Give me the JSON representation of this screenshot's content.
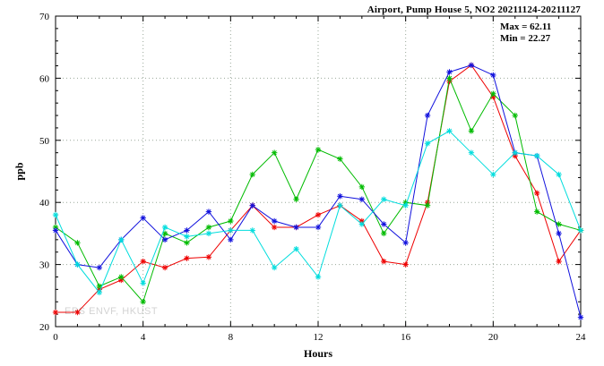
{
  "title": "Airport, Pump House 5, NO2 20211124-20211127",
  "stats": {
    "max_label": "Max = 62.11",
    "min_label": "Min = 22.27"
  },
  "watermark": "EPS ENVF, HKUST",
  "chart_data": {
    "type": "line",
    "title": "Airport, Pump House 5, NO2 20211124-20211127",
    "xlabel": "Hours",
    "ylabel": "ppb",
    "xlim": [
      0,
      24
    ],
    "ylim": [
      20,
      70
    ],
    "xticks": [
      0,
      4,
      8,
      12,
      16,
      20,
      24
    ],
    "yticks": [
      20,
      30,
      40,
      50,
      60,
      70
    ],
    "grid": true,
    "legend": "none",
    "marker": "asterisk",
    "max": 62.11,
    "min": 22.27,
    "x": [
      0,
      1,
      2,
      3,
      4,
      5,
      6,
      7,
      8,
      9,
      10,
      11,
      12,
      13,
      14,
      15,
      16,
      17,
      18,
      19,
      20,
      21,
      22,
      23,
      24
    ],
    "series": [
      {
        "name": "series-1",
        "color": "#ee0000",
        "values": [
          22.3,
          22.3,
          26.0,
          27.5,
          30.5,
          29.5,
          31.0,
          31.2,
          35.5,
          39.5,
          36.0,
          36.0,
          38.0,
          39.5,
          37.0,
          30.5,
          30.0,
          40.0,
          59.5,
          62.1,
          57.0,
          47.5,
          41.5,
          30.5,
          35.5
        ]
      },
      {
        "name": "series-2",
        "color": "#00bb00",
        "values": [
          36.0,
          33.5,
          26.5,
          28.0,
          24.0,
          35.0,
          33.5,
          36.0,
          37.0,
          44.5,
          48.0,
          40.5,
          48.5,
          47.0,
          42.5,
          35.0,
          40.0,
          39.5,
          60.0,
          51.5,
          57.5,
          54.0,
          38.5,
          36.5,
          35.5
        ]
      },
      {
        "name": "series-3",
        "color": "#1111dd",
        "values": [
          35.5,
          30.0,
          29.5,
          34.0,
          37.5,
          34.0,
          35.5,
          38.5,
          34.0,
          39.5,
          37.0,
          36.0,
          36.0,
          41.0,
          40.5,
          36.5,
          33.5,
          54.0,
          61.0,
          62.1,
          60.5,
          48.0,
          47.5,
          35.0,
          21.5
        ]
      },
      {
        "name": "series-4",
        "color": "#00dddd",
        "values": [
          38.0,
          30.0,
          25.5,
          34.0,
          27.0,
          36.0,
          34.5,
          35.0,
          35.5,
          35.5,
          29.5,
          32.5,
          28.0,
          39.5,
          36.5,
          40.5,
          39.5,
          49.5,
          51.5,
          48.0,
          44.5,
          48.0,
          47.5,
          44.5,
          35.5
        ]
      }
    ],
    "grid_color": "#9aa89a",
    "axis_color": "#000000"
  }
}
